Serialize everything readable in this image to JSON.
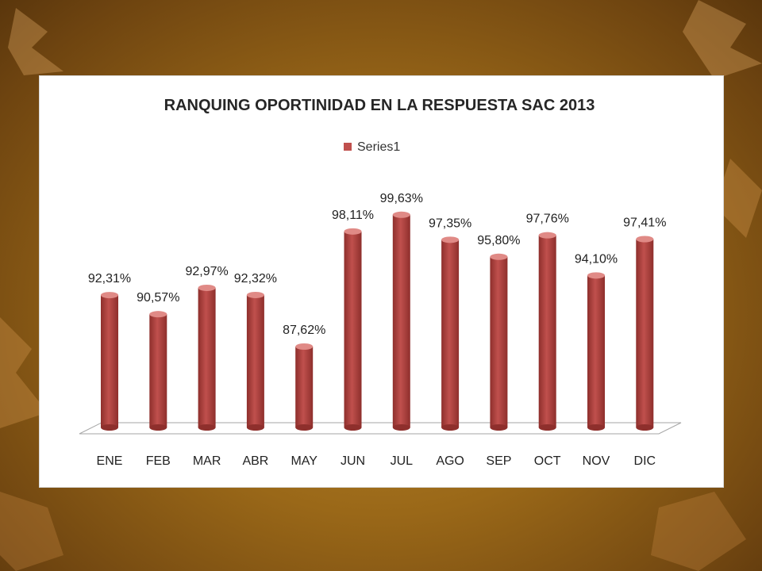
{
  "chart_data": {
    "type": "bar",
    "title": "RANQUING OPORTINIDAD EN LA RESPUESTA  SAC 2013",
    "categories": [
      "ENE",
      "FEB",
      "MAR",
      "ABR",
      "MAY",
      "JUN",
      "JUL",
      "AGO",
      "SEP",
      "OCT",
      "NOV",
      "DIC"
    ],
    "series": [
      {
        "name": "Series1",
        "values": [
          92.31,
          90.57,
          92.97,
          92.32,
          87.62,
          98.11,
          99.63,
          97.35,
          95.8,
          97.76,
          94.1,
          97.41
        ],
        "labels": [
          "92,31%",
          "90,57%",
          "92,97%",
          "92,32%",
          "87,62%",
          "98,11%",
          "99,63%",
          "97,35%",
          "95,80%",
          "97,76%",
          "94,10%",
          "97,41%"
        ],
        "color": "#c0504d"
      }
    ],
    "legend_position": "top",
    "grid": false,
    "xlabel": "",
    "ylabel": ""
  },
  "colors": {
    "bar": "#c0504d",
    "bar_dark": "#8e2f2c",
    "bar_light": "#e08a86",
    "background": "#9a6818"
  }
}
